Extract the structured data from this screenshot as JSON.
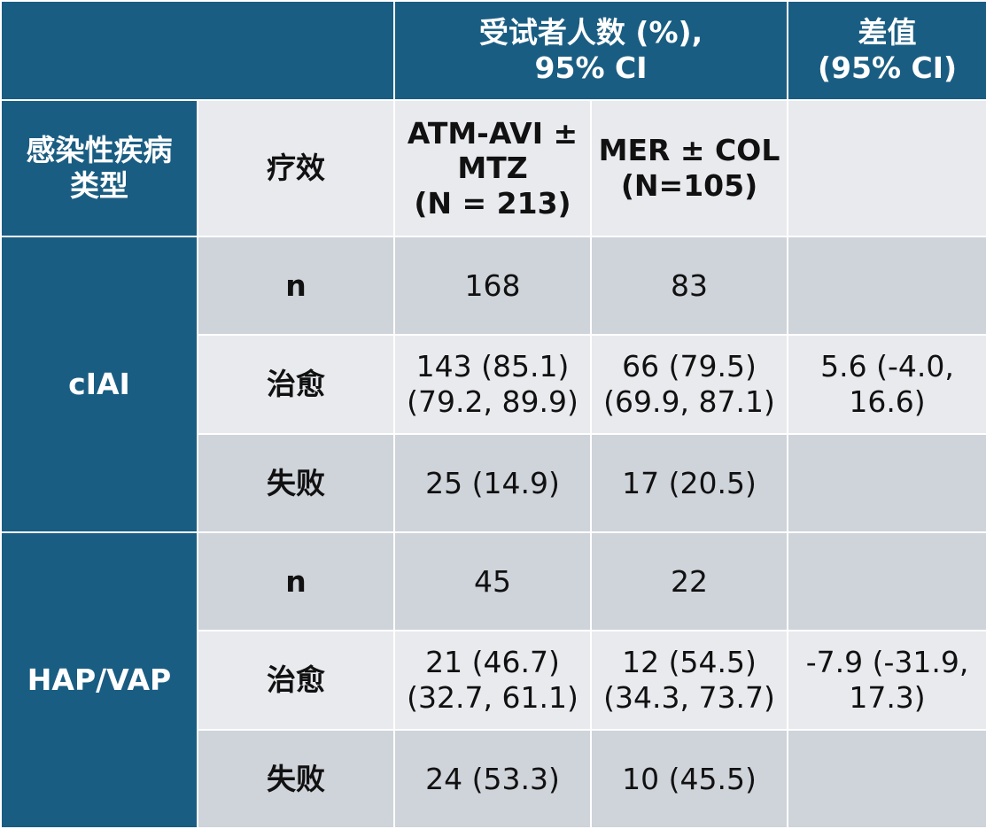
{
  "header": {
    "group_line1": "受试者人数 (%),",
    "group_line2": "95% CI",
    "diff_line1": "差值",
    "diff_line2": "(95% CI)",
    "infection_type_line1": "感染性疾病",
    "infection_type_line2": "类型",
    "efficacy": "疗效",
    "arm1_line1": "ATM-AVI ±",
    "arm1_line2": "MTZ",
    "arm1_line3": "(N = 213)",
    "arm2_line1": "MER ± COL",
    "arm2_line2": "(N=105)"
  },
  "groups": [
    {
      "label": "cIAI",
      "rows": [
        {
          "efficacy": "n",
          "arm1": [
            "168"
          ],
          "arm2": [
            "83"
          ],
          "diff": []
        },
        {
          "efficacy": "治愈",
          "arm1": [
            "143 (85.1)",
            "(79.2, 89.9)"
          ],
          "arm2": [
            "66 (79.5)",
            "(69.9, 87.1)"
          ],
          "diff": [
            "5.6 (-4.0,",
            "16.6)"
          ]
        },
        {
          "efficacy": "失败",
          "arm1": [
            "25 (14.9)"
          ],
          "arm2": [
            "17 (20.5)"
          ],
          "diff": []
        }
      ]
    },
    {
      "label": "HAP/VAP",
      "rows": [
        {
          "efficacy": "n",
          "arm1": [
            "45"
          ],
          "arm2": [
            "22"
          ],
          "diff": []
        },
        {
          "efficacy": "治愈",
          "arm1": [
            "21 (46.7)",
            "(32.7, 61.1)"
          ],
          "arm2": [
            "12 (54.5)",
            "(34.3, 73.7)"
          ],
          "diff": [
            "-7.9 (-31.9,",
            "17.3)"
          ]
        },
        {
          "efficacy": "失败",
          "arm1": [
            "24 (53.3)"
          ],
          "arm2": [
            "10 (45.5)"
          ],
          "diff": []
        }
      ]
    }
  ]
}
